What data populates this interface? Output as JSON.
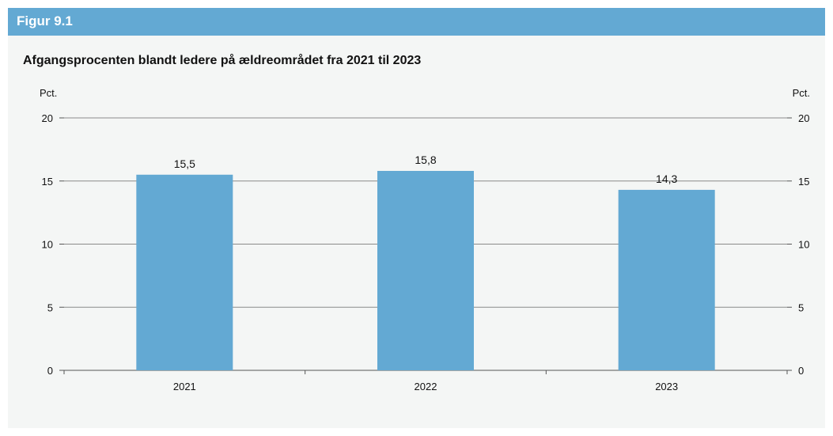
{
  "figure": {
    "label": "Figur 9.1",
    "title": "Afgangsprocenten blandt ledere på ældreområdet fra 2021 til 2023"
  },
  "colors": {
    "header": "#63a9d3",
    "bar": "#63a9d3",
    "background": "#f4f6f5",
    "grid": "#8a8a8a"
  },
  "chart_data": {
    "type": "bar",
    "categories": [
      "2021",
      "2022",
      "2023"
    ],
    "values": [
      15.5,
      15.8,
      14.3
    ],
    "value_labels": [
      "15,5",
      "15,8",
      "14,3"
    ],
    "title": "Afgangsprocenten blandt ledere på ældreområdet fra 2021 til 2023",
    "ylabel_left": "Pct.",
    "ylabel_right": "Pct.",
    "xlabel": "",
    "ylim": [
      0,
      20
    ],
    "yticks": [
      0,
      5,
      10,
      15,
      20
    ],
    "grid": true,
    "dual_axis": true
  }
}
